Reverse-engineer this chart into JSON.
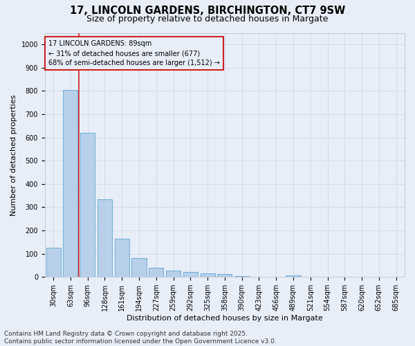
{
  "title": "17, LINCOLN GARDENS, BIRCHINGTON, CT7 9SW",
  "subtitle": "Size of property relative to detached houses in Margate",
  "xlabel": "Distribution of detached houses by size in Margate",
  "ylabel": "Number of detached properties",
  "categories": [
    "30sqm",
    "63sqm",
    "96sqm",
    "128sqm",
    "161sqm",
    "194sqm",
    "227sqm",
    "259sqm",
    "292sqm",
    "325sqm",
    "358sqm",
    "390sqm",
    "423sqm",
    "456sqm",
    "489sqm",
    "521sqm",
    "554sqm",
    "587sqm",
    "620sqm",
    "652sqm",
    "685sqm"
  ],
  "values": [
    125,
    805,
    620,
    335,
    165,
    82,
    40,
    27,
    22,
    15,
    14,
    5,
    0,
    0,
    8,
    0,
    0,
    0,
    0,
    0,
    0
  ],
  "bar_color": "#b8d0ea",
  "bar_edge_color": "#6aaed6",
  "grid_color": "#d0dcea",
  "background_color": "#e8eef8",
  "vline_color": "#cc2222",
  "vline_x": 1.5,
  "annotation_text": "17 LINCOLN GARDENS: 89sqm\n← 31% of detached houses are smaller (677)\n68% of semi-detached houses are larger (1,512) →",
  "annotation_box_color": "#cc2222",
  "ylim": [
    0,
    1050
  ],
  "yticks": [
    0,
    100,
    200,
    300,
    400,
    500,
    600,
    700,
    800,
    900,
    1000
  ],
  "footer1": "Contains HM Land Registry data © Crown copyright and database right 2025.",
  "footer2": "Contains public sector information licensed under the Open Government Licence v3.0.",
  "title_fontsize": 10.5,
  "subtitle_fontsize": 9,
  "xlabel_fontsize": 8,
  "ylabel_fontsize": 8,
  "tick_fontsize": 7,
  "footer_fontsize": 6.5,
  "annot_fontsize": 7
}
